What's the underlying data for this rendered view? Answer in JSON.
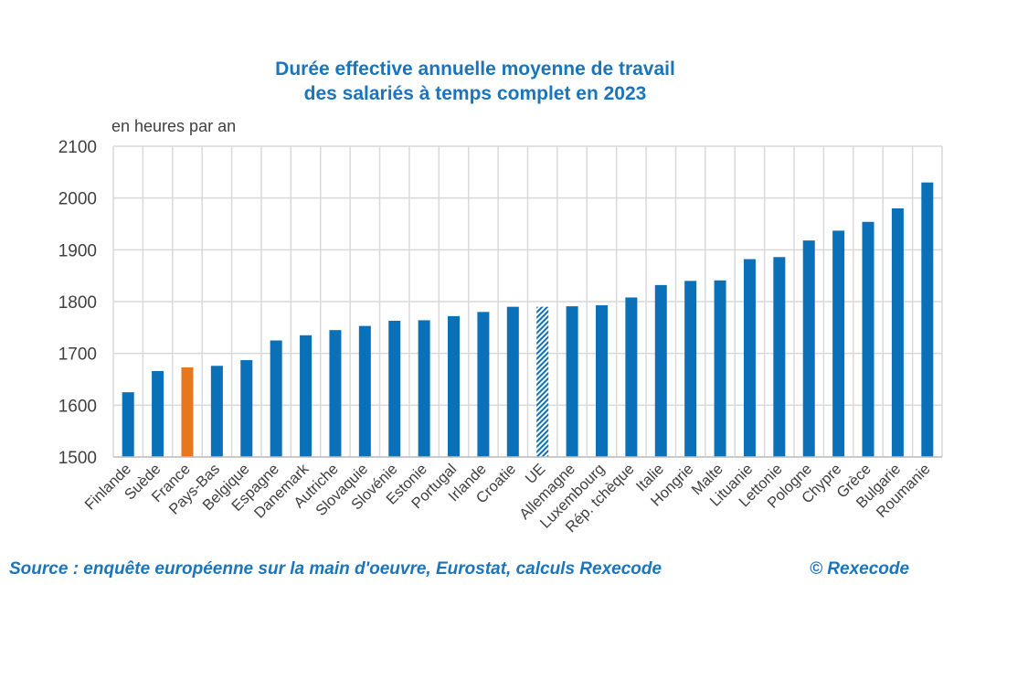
{
  "colors": {
    "bar": "#0a70b8",
    "highlight": "#e8761c",
    "hatch": "#0a70b8",
    "grid": "#d9d9d9",
    "title": "#1a75bc"
  },
  "title_lines": [
    "Durée effective annuelle moyenne de travail",
    "des salariés à temps complet en 2023"
  ],
  "unit_label": "en heures par an",
  "footer": {
    "source": "Source : enquête européenne sur la main d'oeuvre, Eurostat, calculs Rexecode",
    "copyright": "© Rexecode"
  },
  "chart_data": {
    "type": "bar",
    "title": "Durée effective annuelle moyenne de travail des salariés à temps complet en 2023",
    "ylabel": "en heures par an",
    "xlabel": "",
    "ylim": [
      1500,
      2100
    ],
    "yticks": [
      1500,
      1600,
      1700,
      1800,
      1900,
      2000,
      2100
    ],
    "grid": true,
    "categories": [
      "Finlande",
      "Suède",
      "France",
      "Pays-Bas",
      "Belgique",
      "Espagne",
      "Danemark",
      "Autriche",
      "Slovaquie",
      "Slovénie",
      "Estonie",
      "Portugal",
      "Irlande",
      "Croatie",
      "UE",
      "Allemagne",
      "Luxembourg",
      "Rép. tchèque",
      "Italie",
      "Hongrie",
      "Malte",
      "Lituanie",
      "Lettonie",
      "Pologne",
      "Chypre",
      "Grèce",
      "Bulgarie",
      "Roumanie"
    ],
    "values": [
      1625,
      1666,
      1673,
      1676,
      1687,
      1725,
      1735,
      1745,
      1753,
      1763,
      1764,
      1772,
      1780,
      1790,
      1790,
      1791,
      1793,
      1808,
      1832,
      1840,
      1841,
      1882,
      1886,
      1918,
      1937,
      1954,
      1980,
      2030
    ],
    "highlight": "France",
    "hatched": "UE"
  }
}
